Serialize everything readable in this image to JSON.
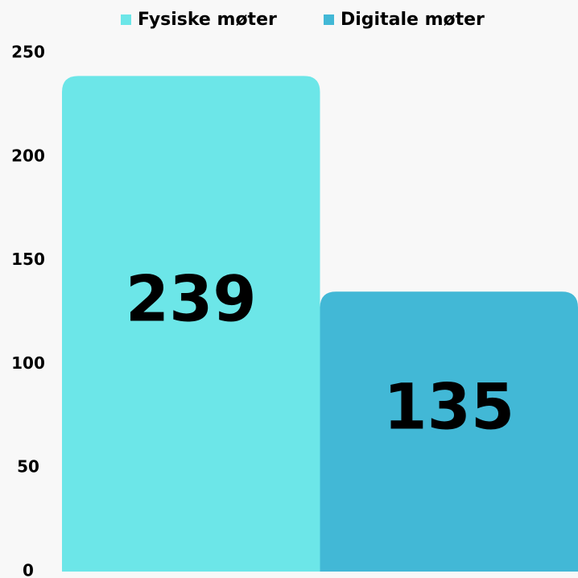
{
  "chart_data": {
    "type": "bar",
    "categories": [
      null
    ],
    "series": [
      {
        "name": "Fysiske møter",
        "color": "#6ce6e8",
        "values": [
          239
        ]
      },
      {
        "name": "Digitale møter",
        "color": "#42b8d6",
        "values": [
          135
        ]
      }
    ],
    "ylim": [
      0,
      250
    ],
    "yticks": [
      0,
      50,
      100,
      150,
      200,
      250
    ],
    "grid": false,
    "legend": "top"
  }
}
